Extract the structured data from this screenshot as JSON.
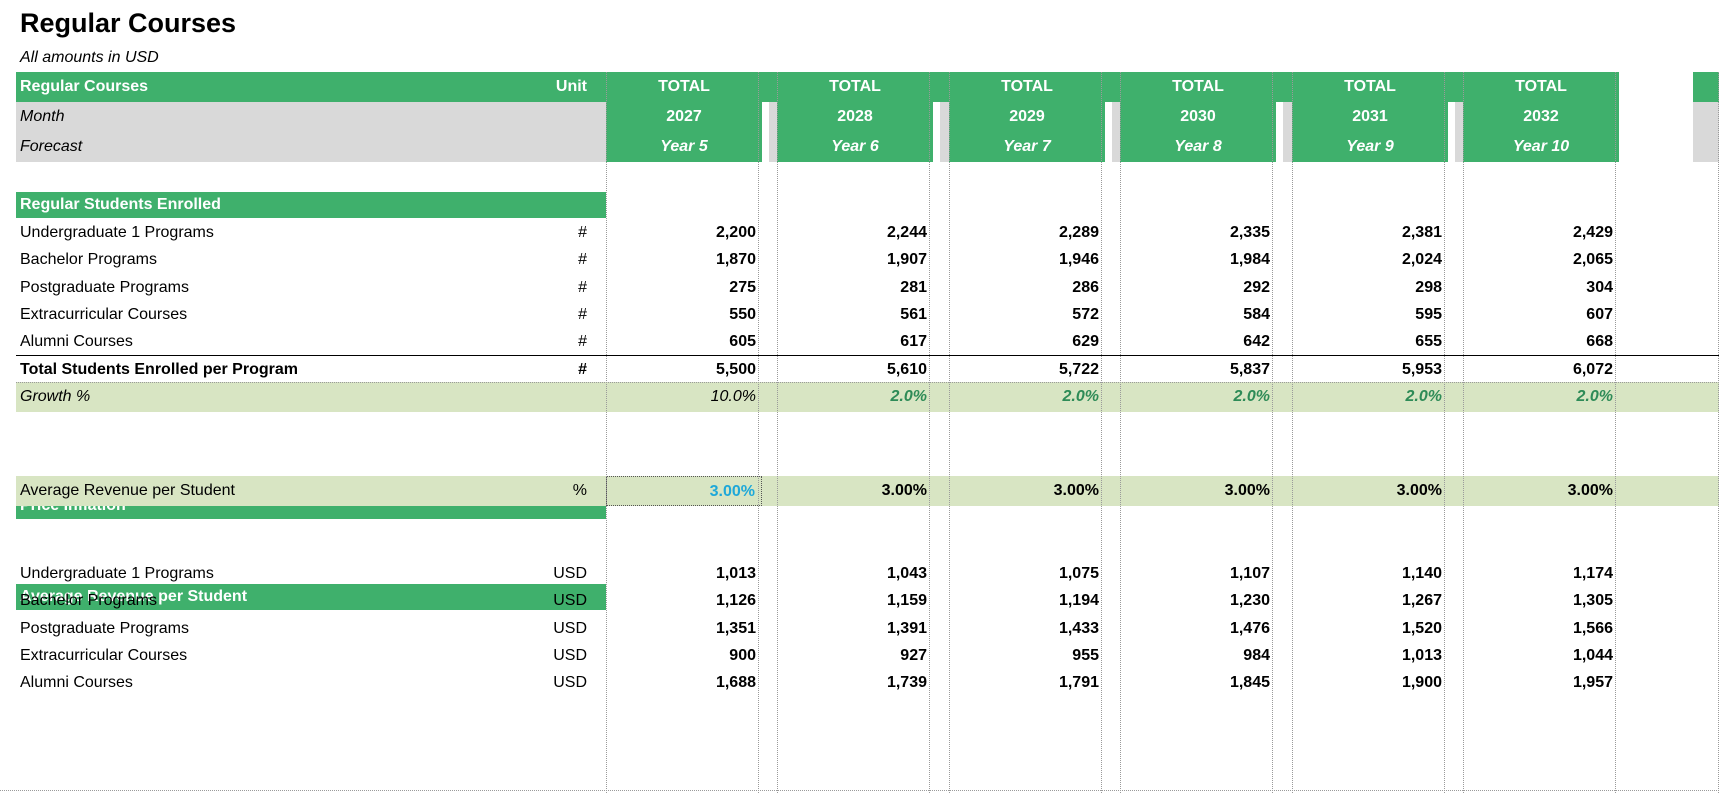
{
  "title": "Regular Courses",
  "subtitle": "All amounts in  USD",
  "header": {
    "label_row1": "Regular Courses",
    "unit_label": "Unit",
    "label_row2": "Month",
    "label_row3": "Forecast",
    "columns": [
      {
        "total": "TOTAL",
        "year": "2027",
        "period": "Year 5"
      },
      {
        "total": "TOTAL",
        "year": "2028",
        "period": "Year 6"
      },
      {
        "total": "TOTAL",
        "year": "2029",
        "period": "Year 7"
      },
      {
        "total": "TOTAL",
        "year": "2030",
        "period": "Year 8"
      },
      {
        "total": "TOTAL",
        "year": "2031",
        "period": "Year 9"
      },
      {
        "total": "TOTAL",
        "year": "2032",
        "period": "Year 10"
      }
    ]
  },
  "enrolled": {
    "section_title": "Regular Students Enrolled",
    "rows": [
      {
        "label": "Undergraduate 1 Programs",
        "unit": "#",
        "values": [
          "2,200",
          "2,244",
          "2,289",
          "2,335",
          "2,381",
          "2,429"
        ]
      },
      {
        "label": "Bachelor Programs",
        "unit": "#",
        "values": [
          "1,870",
          "1,907",
          "1,946",
          "1,984",
          "2,024",
          "2,065"
        ]
      },
      {
        "label": "Postgraduate Programs",
        "unit": "#",
        "values": [
          "275",
          "281",
          "286",
          "292",
          "298",
          "304"
        ]
      },
      {
        "label": "Extracurricular Courses",
        "unit": "#",
        "values": [
          "550",
          "561",
          "572",
          "584",
          "595",
          "607"
        ]
      },
      {
        "label": "Alumni Courses",
        "unit": "#",
        "values": [
          "605",
          "617",
          "629",
          "642",
          "655",
          "668"
        ]
      }
    ],
    "total": {
      "label": "Total Students Enrolled per Program",
      "unit": "#",
      "values": [
        "5,500",
        "5,610",
        "5,722",
        "5,837",
        "5,953",
        "6,072"
      ]
    },
    "growth": {
      "label": "Growth %",
      "values": [
        "10.0%",
        "2.0%",
        "2.0%",
        "2.0%",
        "2.0%",
        "2.0%"
      ]
    }
  },
  "inflation": {
    "section_title": "Price Inflation",
    "row": {
      "label": "Average Revenue per Student",
      "unit": "%",
      "values": [
        "3.00%",
        "3.00%",
        "3.00%",
        "3.00%",
        "3.00%",
        "3.00%"
      ]
    }
  },
  "revenue": {
    "section_title": "Average Revenue per Student",
    "rows": [
      {
        "label": "Undergraduate 1 Programs",
        "unit": "USD",
        "values": [
          "1,013",
          "1,043",
          "1,075",
          "1,107",
          "1,140",
          "1,174"
        ]
      },
      {
        "label": "Bachelor Programs",
        "unit": "USD",
        "values": [
          "1,126",
          "1,159",
          "1,194",
          "1,230",
          "1,267",
          "1,305"
        ]
      },
      {
        "label": "Postgraduate Programs",
        "unit": "USD",
        "values": [
          "1,351",
          "1,391",
          "1,433",
          "1,476",
          "1,520",
          "1,566"
        ]
      },
      {
        "label": "Extracurricular Courses",
        "unit": "USD",
        "values": [
          "900",
          "927",
          "955",
          "984",
          "1,013",
          "1,044"
        ]
      },
      {
        "label": "Alumni Courses",
        "unit": "USD",
        "values": [
          "1,688",
          "1,739",
          "1,791",
          "1,845",
          "1,900",
          "1,957"
        ]
      }
    ]
  },
  "colors": {
    "header_green": "#3fb06c",
    "label_grey": "#d9d9d9",
    "growth_band": "#d8e5c3",
    "growth_text": "#2e8b57",
    "input_blue": "#1ea8d9"
  }
}
